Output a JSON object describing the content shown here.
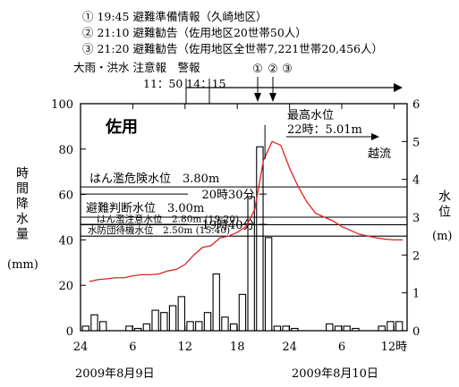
{
  "header": {
    "events": [
      "① 19:45 避難準備情報（久崎地区）",
      "② 21:10 避難勧告（佐用地区20世帯50人）",
      "③ 21:20 避難勧告（佐用地区全世帯7,221世帯20,456人）"
    ],
    "warning_label": "大雨・洪水 注意報　警報",
    "warning_times": "11：50 14：15",
    "event_markers": [
      "①",
      "②",
      "③"
    ]
  },
  "chart_data": {
    "type": "bar+line",
    "title": "佐用",
    "ylabel_left": "時間降水量",
    "ylabel_left_unit": "(mm)",
    "ylabel_right": "水位",
    "ylabel_right_unit": "(m)",
    "x_ticks": [
      "24",
      "6",
      "12",
      "18",
      "24",
      "6",
      "12時"
    ],
    "x_tick_hours": [
      0,
      6,
      12,
      18,
      24,
      30,
      36
    ],
    "date_labels": [
      "2009年8月9日",
      "2009年8月10日"
    ],
    "left_ylim": [
      0,
      100
    ],
    "left_ticks": [
      0,
      20,
      40,
      60,
      80,
      100
    ],
    "right_ylim": [
      0,
      6
    ],
    "right_ticks": [
      0,
      1,
      2,
      3,
      4,
      5,
      6
    ],
    "rainfall_bars": {
      "name": "時間降水量",
      "hours": [
        1,
        2,
        3,
        4,
        5,
        6,
        7,
        8,
        9,
        10,
        11,
        12,
        13,
        14,
        15,
        16,
        17,
        18,
        19,
        20,
        21,
        22,
        23,
        24,
        25,
        26,
        27,
        28,
        29,
        30,
        31,
        32,
        33,
        34,
        35,
        36,
        37
      ],
      "values": [
        2,
        7,
        4,
        0,
        0,
        2,
        1,
        3,
        9,
        8,
        11,
        15,
        4,
        4,
        8,
        25,
        6,
        3,
        16,
        59,
        81,
        41,
        2,
        2,
        1,
        0,
        0,
        0,
        3,
        2,
        2,
        1,
        0,
        0,
        2,
        4,
        4
      ]
    },
    "water_level": {
      "name": "水位",
      "hours": [
        1,
        2,
        3,
        4,
        5,
        6,
        7,
        8,
        9,
        10,
        11,
        12,
        13,
        14,
        15,
        16,
        17,
        18,
        19,
        20,
        21,
        22,
        23,
        24,
        25,
        26,
        27,
        28,
        29,
        30,
        31,
        32,
        33,
        34,
        35,
        36,
        37
      ],
      "values": [
        1.3,
        1.35,
        1.37,
        1.4,
        1.4,
        1.45,
        1.48,
        1.48,
        1.5,
        1.58,
        1.62,
        1.75,
        2.0,
        2.2,
        2.25,
        2.45,
        2.5,
        2.6,
        2.75,
        3.2,
        4.5,
        5.0,
        4.9,
        4.3,
        3.8,
        3.4,
        3.1,
        3.0,
        2.9,
        2.75,
        2.65,
        2.55,
        2.5,
        2.45,
        2.42,
        2.4,
        2.4
      ]
    },
    "thresholds": [
      {
        "label": "はん濫危険水位　3.80m",
        "level": 3.8,
        "time_label": "20時30分"
      },
      {
        "label": "避難判断水位　3.00m",
        "level": 3.0,
        "time_label": "19時40分"
      },
      {
        "label": "はん濫注意水位　2.80m (19:20)",
        "level": 2.8
      },
      {
        "label": "水防団待機水位　2.50m (15:40)",
        "level": 2.5
      }
    ],
    "peak": {
      "label": "最高水位",
      "value_label": "22時：5.01m",
      "hour": 22,
      "level": 5.01
    },
    "overflow_label": "越流",
    "series_colors": {
      "bars": "#000000",
      "line": "#e02020",
      "thresholds": "#000000"
    }
  }
}
